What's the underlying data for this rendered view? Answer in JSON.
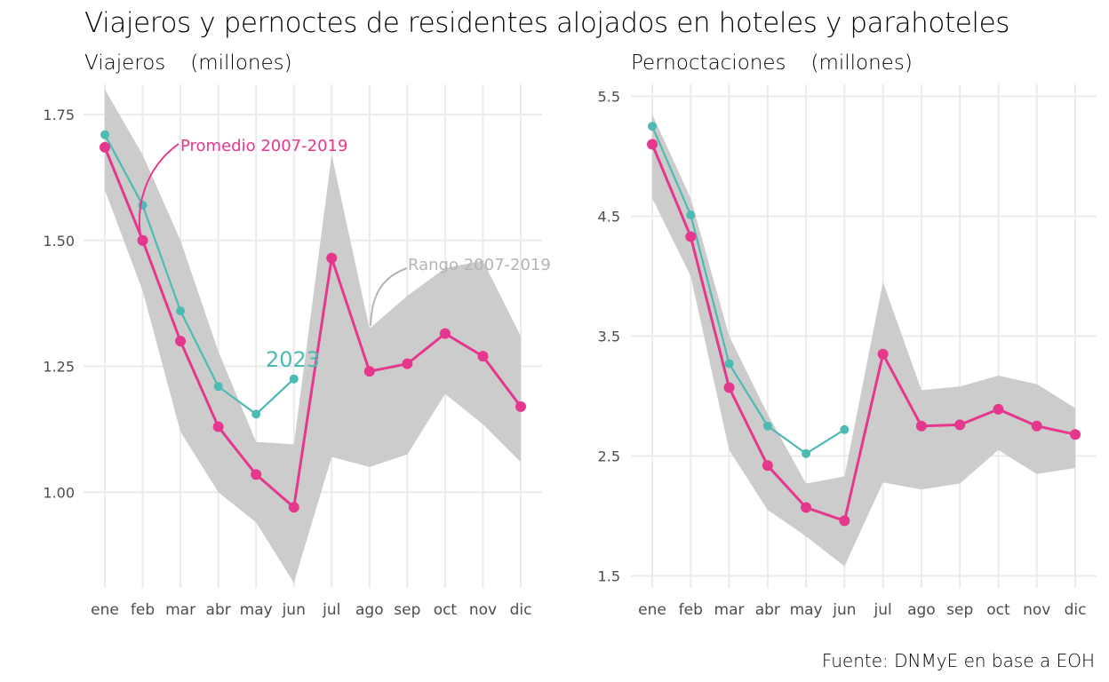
{
  "figure": {
    "title": "Viajeros y pernoctes de residentes alojados en hoteles y parahoteles",
    "caption": "Fuente: DNMyE en base a EOH"
  },
  "colors": {
    "series_2023": "#4dbab3",
    "promedio": "#e6378e",
    "rango": "#c9c9c9",
    "rango_label": "#b4b4b4",
    "grid": "#ebebeb",
    "tick_label": "#4d4d4d"
  },
  "chart_data": [
    {
      "type": "line",
      "subtitle": "Viajeros",
      "unit": "(millones)",
      "categories": [
        "ene",
        "feb",
        "mar",
        "abr",
        "may",
        "jun",
        "jul",
        "ago",
        "sep",
        "oct",
        "nov",
        "dic"
      ],
      "ylim": [
        0.81,
        1.81
      ],
      "yticks": [
        1.0,
        1.25,
        1.5,
        1.75
      ],
      "ytick_labels": [
        "1.00",
        "1.25",
        "1.50",
        "1.75"
      ],
      "grid": true,
      "series": [
        {
          "key": "y2023",
          "values": [
            1.71,
            1.57,
            1.36,
            1.21,
            1.155,
            1.225,
            null,
            null,
            null,
            null,
            null,
            null
          ]
        },
        {
          "key": "promedio",
          "values": [
            1.685,
            1.5,
            1.3,
            1.13,
            1.035,
            0.97,
            1.465,
            1.24,
            1.255,
            1.315,
            1.27,
            1.17
          ]
        }
      ],
      "band": {
        "lower": [
          1.6,
          1.4,
          1.12,
          1.0,
          0.94,
          0.82,
          1.07,
          1.05,
          1.075,
          1.195,
          1.135,
          1.06
        ],
        "upper": [
          1.8,
          1.67,
          1.5,
          1.28,
          1.1,
          1.095,
          1.67,
          1.325,
          1.39,
          1.445,
          1.46,
          1.31
        ]
      },
      "annotations": [
        {
          "key": "promedio",
          "text": "Promedio 2007-2019"
        },
        {
          "key": "rango",
          "text": "Rango 2007-2019"
        },
        {
          "key": "y2023",
          "text": "2023"
        }
      ]
    },
    {
      "type": "line",
      "subtitle": "Pernoctaciones",
      "unit": "(millones)",
      "categories": [
        "ene",
        "feb",
        "mar",
        "abr",
        "may",
        "jun",
        "jul",
        "ago",
        "sep",
        "oct",
        "nov",
        "dic"
      ],
      "ylim": [
        1.4,
        5.6
      ],
      "yticks": [
        1.5,
        2.5,
        3.5,
        4.5,
        5.5
      ],
      "ytick_labels": [
        "1.5",
        "2.5",
        "3.5",
        "4.5",
        "5.5"
      ],
      "grid": true,
      "series": [
        {
          "key": "y2023",
          "values": [
            5.25,
            4.51,
            3.27,
            2.75,
            2.52,
            2.72,
            null,
            null,
            null,
            null,
            null,
            null
          ]
        },
        {
          "key": "promedio",
          "values": [
            5.1,
            4.33,
            3.07,
            2.42,
            2.07,
            1.96,
            3.35,
            2.75,
            2.76,
            2.89,
            2.75,
            2.68
          ]
        }
      ],
      "band": {
        "lower": [
          4.65,
          4.0,
          2.55,
          2.05,
          1.83,
          1.58,
          2.28,
          2.22,
          2.27,
          2.55,
          2.35,
          2.4
        ],
        "upper": [
          5.35,
          4.65,
          3.5,
          2.85,
          2.27,
          2.33,
          3.95,
          3.05,
          3.08,
          3.17,
          3.1,
          2.9
        ]
      },
      "annotations": []
    }
  ]
}
